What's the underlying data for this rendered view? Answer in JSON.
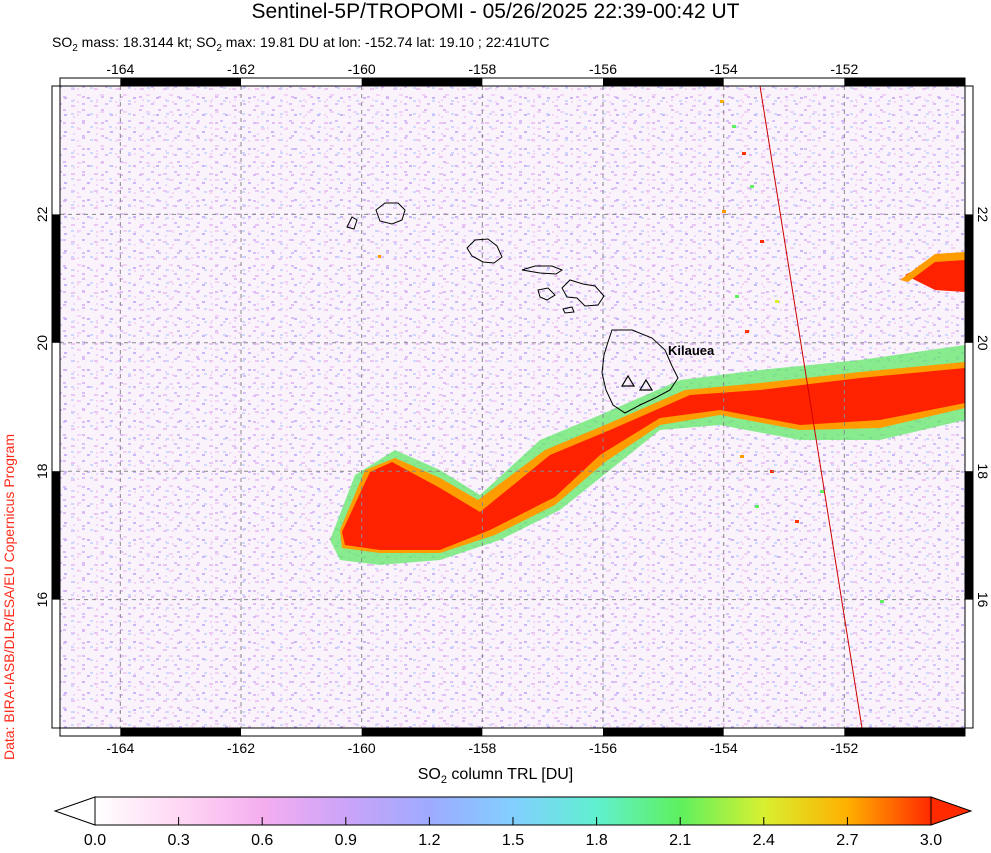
{
  "title": "Sentinel-5P/TROPOMI - 05/26/2025 22:39-00:42 UT",
  "subtitle": {
    "mass_prefix": "SO",
    "mass_sub": "2",
    "mass_text": " mass: 18.3144 kt; SO",
    "max_sub": "2",
    "max_text": " max: 19.81 DU at lon: -152.74 lat: 19.10 ; 22:41UTC"
  },
  "credit": "Data: BIRA-IASB/DLR/ESA/EU Copernicus Program",
  "map": {
    "lon_range": [
      -165,
      -150
    ],
    "lat_range": [
      14,
      24
    ],
    "lon_ticks": [
      "-164",
      "-162",
      "-160",
      "-158",
      "-156",
      "-154",
      "-152"
    ],
    "lat_ticks": [
      "22",
      "20",
      "18",
      "16"
    ],
    "volcano_label": "Kilauea",
    "grid": "dashed",
    "plume_colors": {
      "core": "#ff2200",
      "edge_orange": "#ff9900",
      "edge_green": "#55e05a",
      "background": "#e8c8f2"
    }
  },
  "colorbar": {
    "label_prefix": "SO",
    "label_sub": "2",
    "label_suffix": " column TRL [DU]",
    "ticks": [
      "0.0",
      "0.3",
      "0.6",
      "0.9",
      "1.2",
      "1.5",
      "1.8",
      "2.1",
      "2.4",
      "2.7",
      "3.0"
    ],
    "range": [
      0,
      3
    ],
    "colors": [
      "#ffffff",
      "#ffc8f0",
      "#f5a8f0",
      "#c8a0f8",
      "#9aa8ff",
      "#80d8ff",
      "#5ef0c8",
      "#5ef05e",
      "#d8f030",
      "#ffb000",
      "#ff2a00"
    ]
  }
}
